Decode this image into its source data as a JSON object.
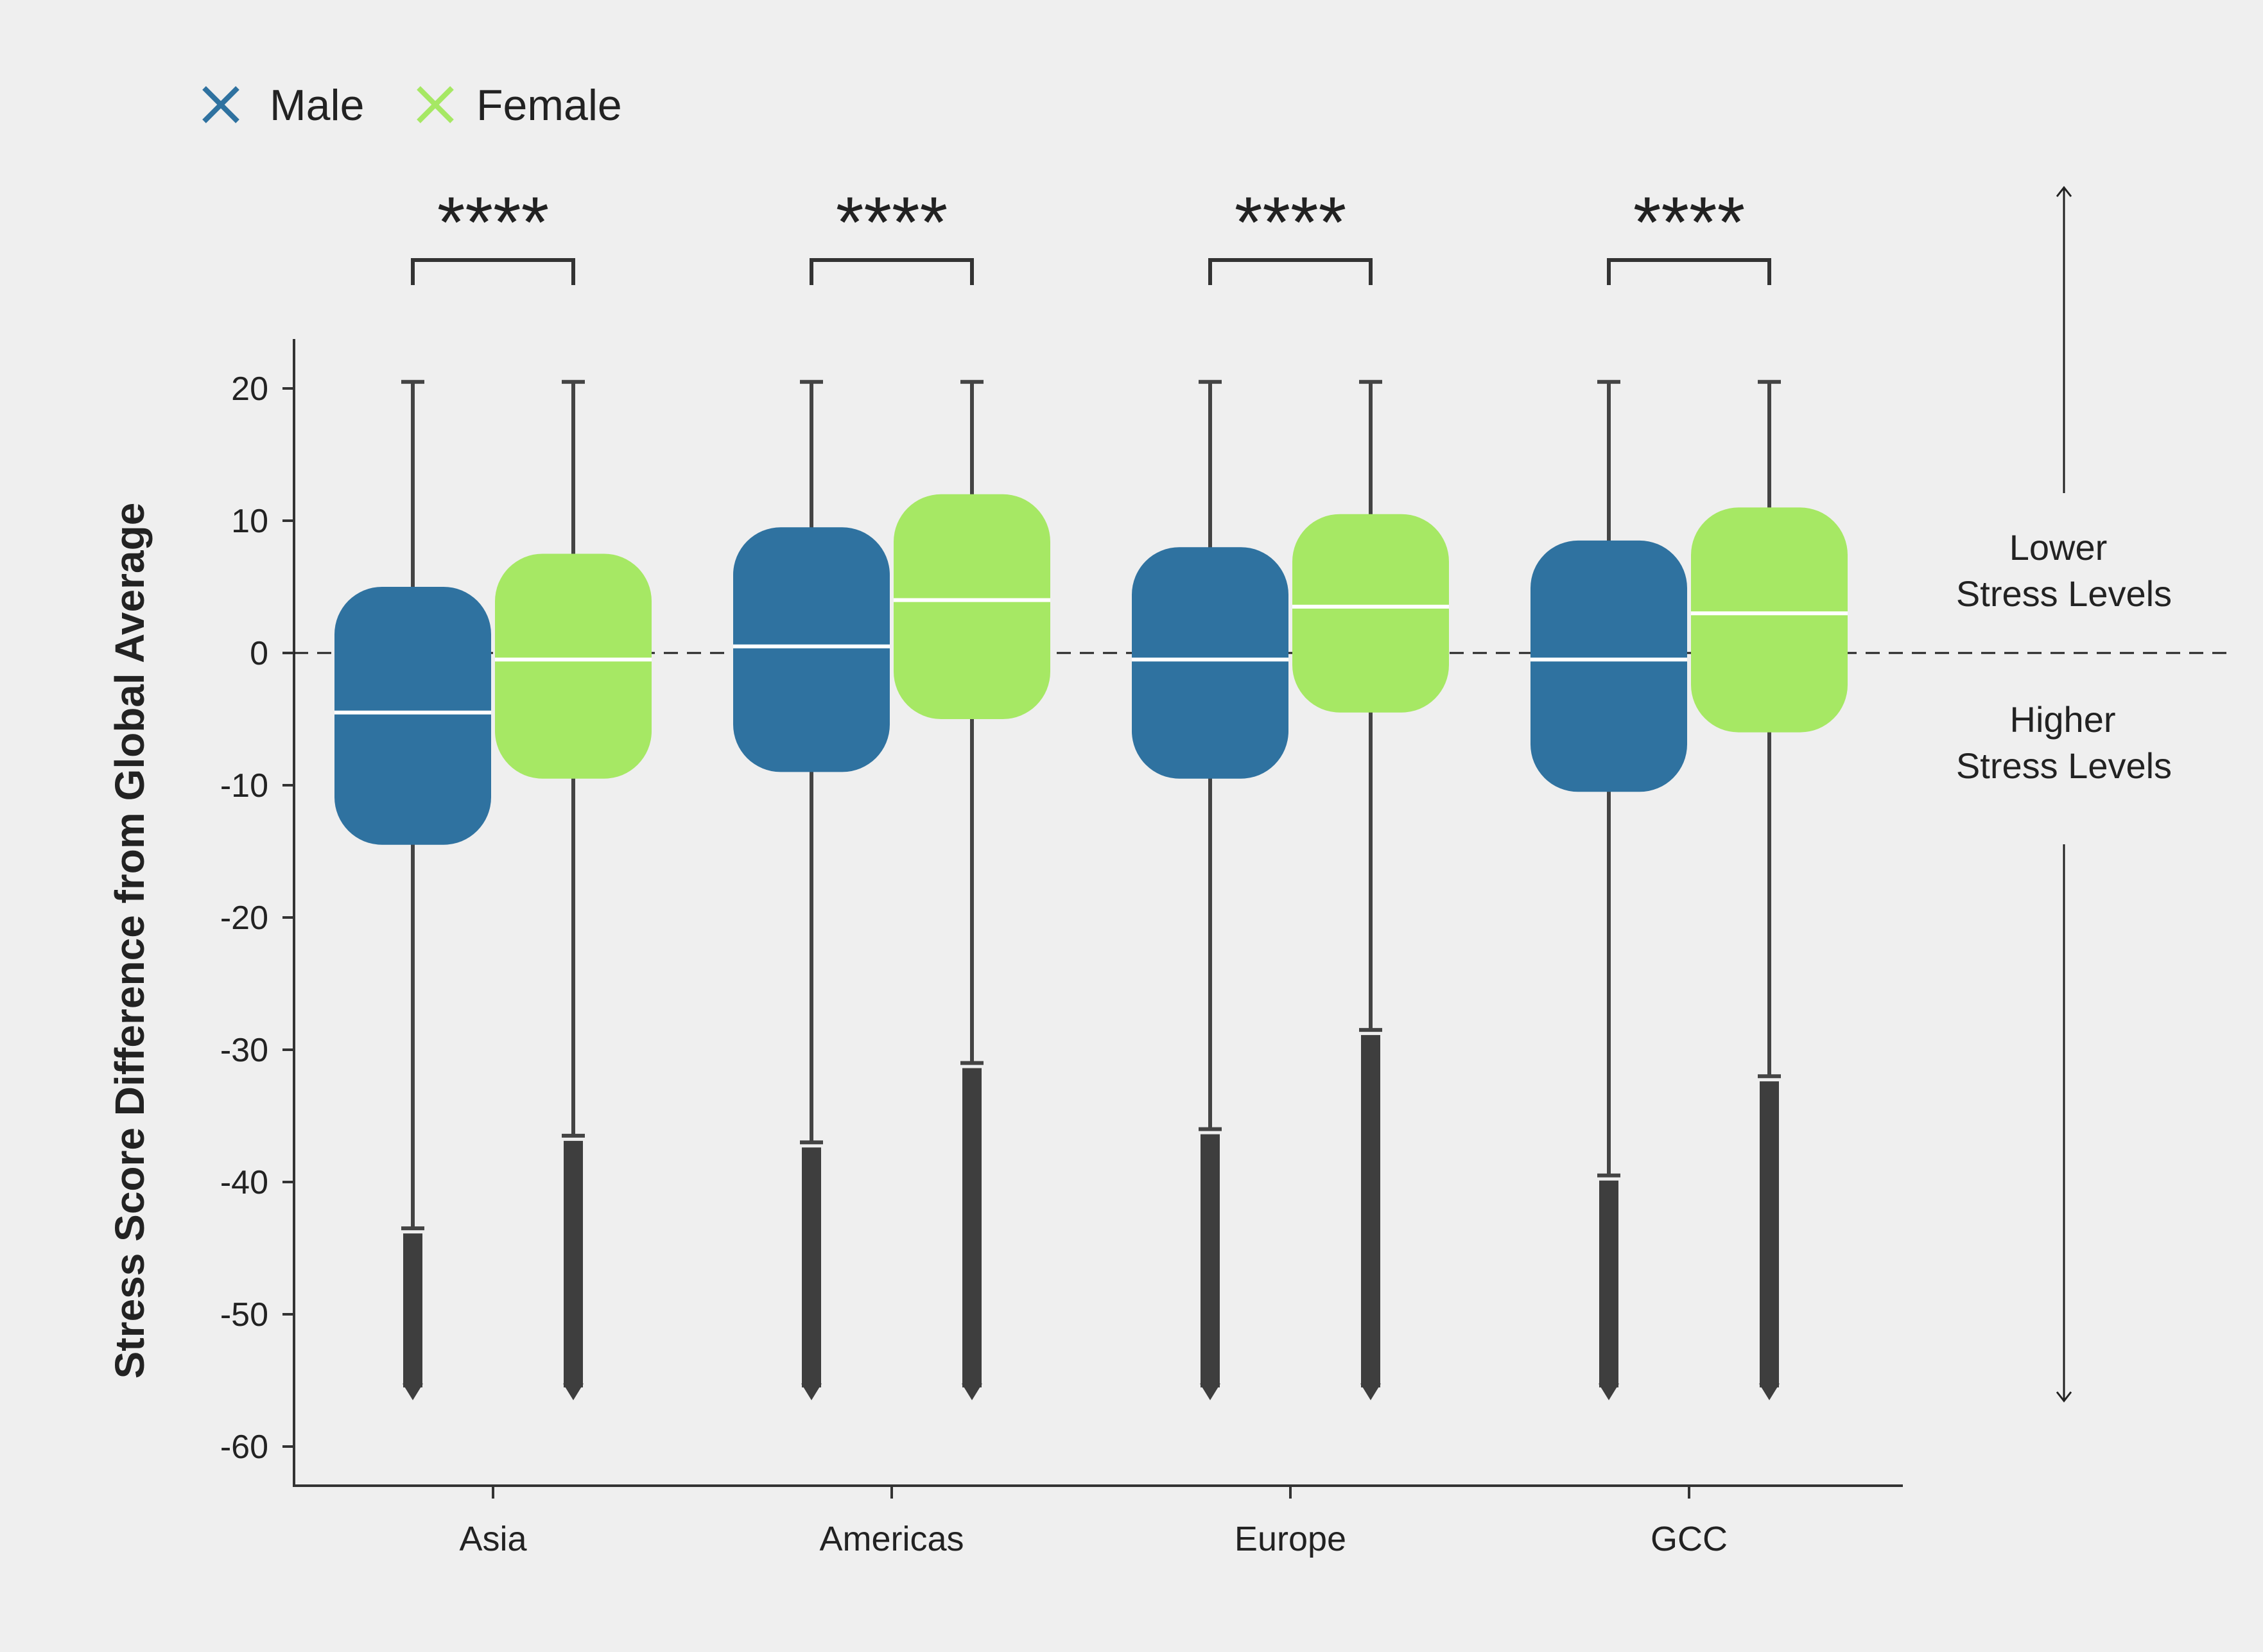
{
  "chart_data": {
    "type": "box",
    "categories": [
      "Asia",
      "Americas",
      "Europe",
      "GCC"
    ],
    "ylabel": "Stress Score Difference from Global Average",
    "ylim": [
      -63,
      24
    ],
    "yticks": [
      20,
      10,
      0,
      -10,
      -20,
      -30,
      -40,
      -50,
      -60
    ],
    "reference_line": 0,
    "series": [
      {
        "name": "Male",
        "color": "#2f72a0",
        "marker": "x",
        "boxes": [
          {
            "whisker_high": 20.5,
            "q3": 5.0,
            "median": -4.5,
            "q1": -14.5,
            "whisker_low": -43.5,
            "outliers_low": -56.5
          },
          {
            "whisker_high": 20.5,
            "q3": 9.5,
            "median": 0.5,
            "q1": -9.0,
            "whisker_low": -37.0,
            "outliers_low": -56.5
          },
          {
            "whisker_high": 20.5,
            "q3": 8.0,
            "median": -0.5,
            "q1": -9.5,
            "whisker_low": -36.0,
            "outliers_low": -56.5
          },
          {
            "whisker_high": 20.5,
            "q3": 8.5,
            "median": -0.5,
            "q1": -10.5,
            "whisker_low": -39.5,
            "outliers_low": -56.5
          }
        ]
      },
      {
        "name": "Female",
        "color": "#a6e864",
        "marker": "x",
        "boxes": [
          {
            "whisker_high": 20.5,
            "q3": 7.5,
            "median": -0.5,
            "q1": -9.5,
            "whisker_low": -36.5,
            "outliers_low": -56.5
          },
          {
            "whisker_high": 20.5,
            "q3": 12.0,
            "median": 4.0,
            "q1": -5.0,
            "whisker_low": -31.0,
            "outliers_low": -56.5
          },
          {
            "whisker_high": 20.5,
            "q3": 10.5,
            "median": 3.5,
            "q1": -4.5,
            "whisker_low": -28.5,
            "outliers_low": -56.5
          },
          {
            "whisker_high": 20.5,
            "q3": 11.0,
            "median": 3.0,
            "q1": -6.0,
            "whisker_low": -32.0,
            "outliers_low": -56.5
          }
        ]
      }
    ],
    "significance": [
      "****",
      "****",
      "****",
      "****"
    ],
    "annotations": {
      "upper": [
        "Lower",
        "Stress Levels"
      ],
      "lower": [
        "Higher",
        "Stress Levels"
      ]
    }
  }
}
